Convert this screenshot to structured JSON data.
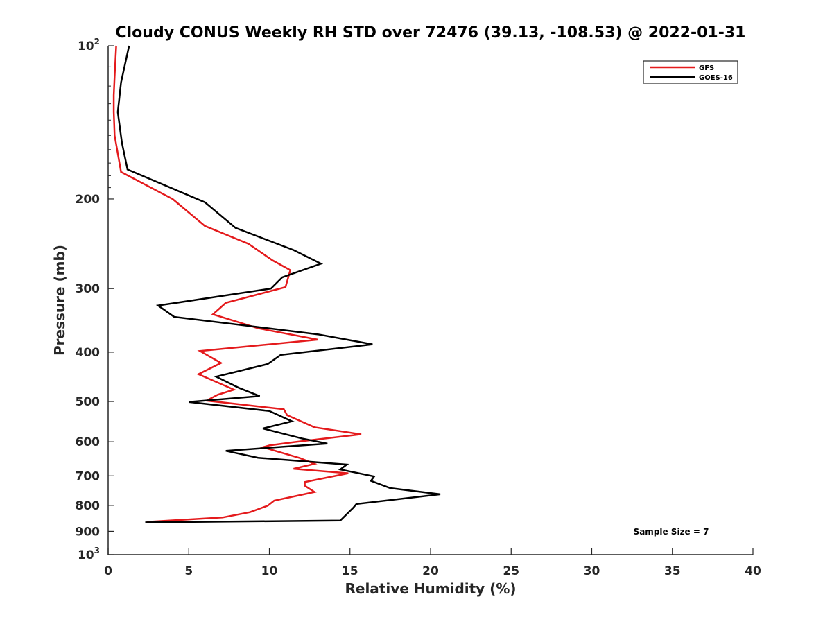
{
  "chart_data": {
    "type": "line",
    "title": "Cloudy CONUS Weekly RH STD over 72476 (39.13, -108.53) @ 2022-01-31",
    "xlabel": "Relative Humidity (%)",
    "ylabel": "Pressure (mb)",
    "xlim": [
      0,
      40
    ],
    "ylim": [
      100,
      1000
    ],
    "y_scale": "log",
    "y_reversed": true,
    "x_ticks": [
      0,
      5,
      10,
      15,
      20,
      25,
      30,
      35,
      40
    ],
    "x_tick_labels": [
      "0",
      "5",
      "10",
      "15",
      "20",
      "25",
      "30",
      "35",
      "40"
    ],
    "y_ticks": [
      200,
      300,
      400,
      500,
      600,
      700,
      800,
      900
    ],
    "y_tick_labels": [
      "200",
      "300",
      "400",
      "500",
      "600",
      "700",
      "800",
      "900"
    ],
    "y_end_ticks": [
      {
        "value": 100,
        "base": "10",
        "exp": "2"
      },
      {
        "value": 1000,
        "base": "10",
        "exp": "3"
      }
    ],
    "grid": false,
    "legend_position": "top-right",
    "annotation": "Sample Size = 7",
    "series": [
      {
        "name": "GFS",
        "color": "#e41a1c",
        "points": [
          [
            0.5,
            100
          ],
          [
            0.4,
            115
          ],
          [
            0.35,
            125
          ],
          [
            0.35,
            135
          ],
          [
            0.4,
            150
          ],
          [
            0.8,
            177
          ],
          [
            4.0,
            200
          ],
          [
            6.0,
            226
          ],
          [
            8.7,
            245
          ],
          [
            10.2,
            264
          ],
          [
            11.3,
            276
          ],
          [
            11.0,
            298
          ],
          [
            7.3,
            320
          ],
          [
            6.5,
            337
          ],
          [
            9.3,
            359
          ],
          [
            13.0,
            378
          ],
          [
            5.7,
            398
          ],
          [
            7.0,
            420
          ],
          [
            5.6,
            442
          ],
          [
            7.8,
            474
          ],
          [
            6.8,
            485
          ],
          [
            6.1,
            498
          ],
          [
            10.9,
            518
          ],
          [
            11.1,
            532
          ],
          [
            12.8,
            562
          ],
          [
            15.7,
            580
          ],
          [
            11.5,
            601
          ],
          [
            10.0,
            610
          ],
          [
            9.6,
            615
          ],
          [
            11.9,
            646
          ],
          [
            12.8,
            663
          ],
          [
            11.5,
            678
          ],
          [
            14.9,
            692
          ],
          [
            12.2,
            720
          ],
          [
            12.2,
            732
          ],
          [
            12.8,
            753
          ],
          [
            10.3,
            783
          ],
          [
            9.9,
            801
          ],
          [
            8.8,
            825
          ],
          [
            7.1,
            845
          ],
          [
            2.4,
            862
          ]
        ]
      },
      {
        "name": "GOES-16",
        "color": "#000000",
        "points": [
          [
            1.3,
            100
          ],
          [
            0.8,
            118
          ],
          [
            0.6,
            135
          ],
          [
            0.85,
            155
          ],
          [
            1.2,
            175
          ],
          [
            6.0,
            203
          ],
          [
            7.9,
            228
          ],
          [
            11.5,
            252
          ],
          [
            13.2,
            268
          ],
          [
            10.8,
            285
          ],
          [
            10.1,
            300
          ],
          [
            3.1,
            324
          ],
          [
            4.1,
            341
          ],
          [
            13.0,
            369
          ],
          [
            16.4,
            386
          ],
          [
            10.7,
            405
          ],
          [
            9.9,
            422
          ],
          [
            6.7,
            447
          ],
          [
            8.1,
            470
          ],
          [
            9.4,
            488
          ],
          [
            5.0,
            501
          ],
          [
            10.0,
            522
          ],
          [
            11.4,
            547
          ],
          [
            9.6,
            565
          ],
          [
            12.0,
            591
          ],
          [
            13.6,
            605
          ],
          [
            7.3,
            625
          ],
          [
            9.3,
            645
          ],
          [
            14.8,
            665
          ],
          [
            14.4,
            680
          ],
          [
            16.5,
            702
          ],
          [
            16.3,
            716
          ],
          [
            17.5,
            740
          ],
          [
            20.6,
            761
          ],
          [
            15.4,
            795
          ],
          [
            15.2,
            809
          ],
          [
            14.4,
            857
          ],
          [
            2.3,
            864
          ]
        ]
      }
    ]
  }
}
